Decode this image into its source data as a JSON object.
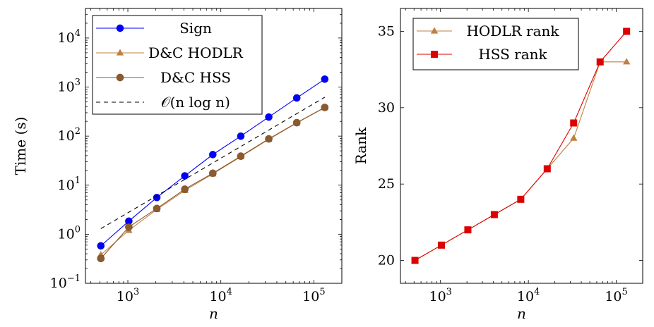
{
  "chart_data": [
    {
      "type": "line",
      "xlabel": "n",
      "ylabel": "Time (s)",
      "xscale": "log",
      "yscale": "log",
      "xlim": [
        350,
        200000
      ],
      "ylim": [
        0.1,
        40000
      ],
      "x_ticks": [
        {
          "value": 1000,
          "mantissa": "10",
          "exp": "3"
        },
        {
          "value": 10000,
          "mantissa": "10",
          "exp": "4"
        },
        {
          "value": 100000,
          "mantissa": "10",
          "exp": "5"
        }
      ],
      "y_ticks": [
        {
          "value": 0.1,
          "mantissa": "10",
          "exp": "−1"
        },
        {
          "value": 1,
          "mantissa": "10",
          "exp": "0"
        },
        {
          "value": 10,
          "mantissa": "10",
          "exp": "1"
        },
        {
          "value": 100,
          "mantissa": "10",
          "exp": "2"
        },
        {
          "value": 1000,
          "mantissa": "10",
          "exp": "3"
        },
        {
          "value": 10000,
          "mantissa": "10",
          "exp": "4"
        }
      ],
      "grid": false,
      "legend_position": "top-left",
      "x": [
        512,
        1024,
        2048,
        4096,
        8192,
        16384,
        32768,
        65536,
        131072
      ],
      "series": [
        {
          "name": "Sign",
          "color": "#0000ff",
          "marker": "circle",
          "dashed": false,
          "values": [
            0.58,
            1.85,
            5.6,
            15.5,
            42,
            100,
            245,
            600,
            1450
          ]
        },
        {
          "name": "D&C HODLR",
          "color": "#bf8040",
          "marker": "triangle",
          "dashed": false,
          "values": [
            0.38,
            1.2,
            3.2,
            7.8,
            17,
            38,
            86,
            185,
            380
          ]
        },
        {
          "name": "D&C HSS",
          "color": "#8c5a2e",
          "marker": "circle",
          "dashed": false,
          "values": [
            0.32,
            1.4,
            3.35,
            8.3,
            17.5,
            39,
            88,
            188,
            385
          ]
        },
        {
          "name": "𝒪(n log n)",
          "color": "#000000",
          "marker": "none",
          "dashed": true,
          "values": [
            1.3,
            null,
            null,
            null,
            null,
            null,
            null,
            null,
            620
          ]
        }
      ]
    },
    {
      "type": "line",
      "xlabel": "n",
      "ylabel": "Rank",
      "xscale": "log",
      "yscale": "linear",
      "xlim": [
        350,
        200000
      ],
      "ylim": [
        18.5,
        36.5
      ],
      "x_ticks": [
        {
          "value": 1000,
          "mantissa": "10",
          "exp": "3"
        },
        {
          "value": 10000,
          "mantissa": "10",
          "exp": "4"
        },
        {
          "value": 100000,
          "mantissa": "10",
          "exp": "5"
        }
      ],
      "y_ticks": [
        {
          "value": 20,
          "label": "20"
        },
        {
          "value": 25,
          "label": "25"
        },
        {
          "value": 30,
          "label": "30"
        },
        {
          "value": 35,
          "label": "35"
        }
      ],
      "grid": false,
      "legend_position": "top-left",
      "x": [
        512,
        1024,
        2048,
        4096,
        8192,
        16384,
        32768,
        65536,
        131072
      ],
      "series": [
        {
          "name": "HODLR rank",
          "color": "#bf8040",
          "marker": "triangle",
          "dashed": false,
          "values": [
            20,
            21,
            22,
            23,
            24,
            26,
            28,
            33,
            33
          ]
        },
        {
          "name": "HSS rank",
          "color": "#dd0000",
          "marker": "square",
          "dashed": false,
          "values": [
            20,
            21,
            22,
            23,
            24,
            26,
            29,
            33,
            35
          ]
        }
      ]
    }
  ]
}
